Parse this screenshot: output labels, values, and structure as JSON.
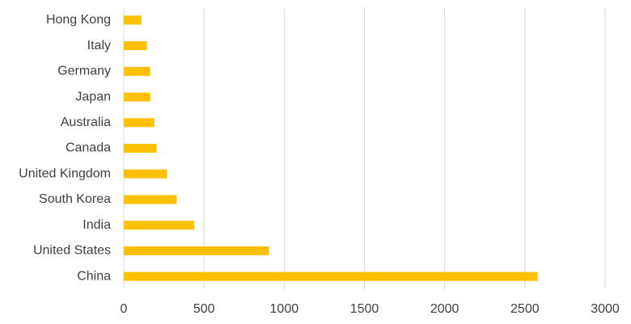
{
  "chart_data": {
    "type": "hbar",
    "categories": [
      "Hong Kong",
      "Italy",
      "Germany",
      "Japan",
      "Australia",
      "Canada",
      "United Kingdom",
      "South Korea",
      "India",
      "United States",
      "China"
    ],
    "values": [
      110,
      145,
      165,
      165,
      190,
      205,
      270,
      330,
      440,
      905,
      2580
    ],
    "color": "#ffc000",
    "xlim": [
      0,
      3000
    ],
    "xticks": [
      0,
      500,
      1000,
      1500,
      2000,
      2500,
      3000
    ],
    "grid": true
  }
}
